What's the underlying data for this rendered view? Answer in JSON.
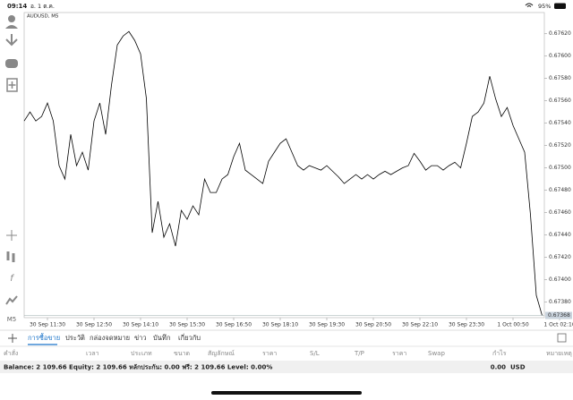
{
  "status_bar": {
    "time": "09:14",
    "date": "อ. 1 ต.ค.",
    "battery": "95%"
  },
  "chart_data": {
    "type": "line",
    "title": "AUDUSD, M5",
    "color": "#000000",
    "categories": [
      null,
      null,
      null,
      null,
      "30 Sep 11:30",
      null,
      null,
      null,
      null,
      null,
      null,
      null,
      "30 Sep 12:50",
      null,
      null,
      null,
      null,
      null,
      null,
      null,
      "30 Sep 14:10",
      null,
      null,
      null,
      null,
      null,
      null,
      null,
      "30 Sep 15:30",
      null,
      null,
      null,
      null,
      null,
      null,
      null,
      "30 Sep 16:50",
      null,
      null,
      null,
      null,
      null,
      null,
      null,
      "30 Sep 18:10",
      null,
      null,
      null,
      null,
      null,
      null,
      null,
      "30 Sep 19:30",
      null,
      null,
      null,
      null,
      null,
      null,
      null,
      "30 Sep 20:50",
      null,
      null,
      null,
      null,
      null,
      null,
      null,
      "30 Sep 22:10",
      null,
      null,
      null,
      null,
      null,
      null,
      null,
      "30 Sep 23:30",
      null,
      null,
      null,
      null,
      null,
      null,
      null,
      "1 Oct 00:50",
      null,
      null,
      null,
      null,
      null,
      null,
      null,
      "1 Oct 02:10"
    ],
    "values": [
      0.67542,
      0.6755,
      0.67542,
      0.67546,
      0.67558,
      0.67542,
      0.67502,
      0.6749,
      0.6753,
      0.67502,
      0.67514,
      0.67498,
      0.67542,
      0.67558,
      0.6753,
      0.67574,
      0.6761,
      0.67618,
      0.67622,
      0.67614,
      0.67602,
      0.67562,
      0.67442,
      0.6747,
      0.67438,
      0.6745,
      0.6743,
      0.67462,
      0.67454,
      0.67466,
      0.67458,
      0.6749,
      0.67478,
      0.67478,
      0.6749,
      0.67494,
      0.6751,
      0.67522,
      0.67498,
      0.67494,
      0.6749,
      0.67486,
      0.67506,
      0.67514,
      0.67522,
      0.67526,
      0.67514,
      0.67502,
      0.67498,
      0.67502,
      0.675,
      0.67498,
      0.67502,
      0.67497,
      0.67492,
      0.67486,
      0.6749,
      0.67494,
      0.6749,
      0.67494,
      0.6749,
      0.67494,
      0.67497,
      0.67494,
      0.67497,
      0.675,
      0.67502,
      0.67513,
      0.67506,
      0.67498,
      0.67502,
      0.67502,
      0.67498,
      0.67502,
      0.67505,
      0.675,
      0.67522,
      0.67546,
      0.6755,
      0.67558,
      0.67582,
      0.67562,
      0.67546,
      0.67554,
      0.67538,
      0.67526,
      0.67514,
      0.67458,
      0.67386,
      0.67368,
      null,
      null,
      null
    ],
    "ylim": [
      0.67366,
      0.67639
    ],
    "yticks": [
      {
        "value": 0.6762,
        "label": "0.67620"
      },
      {
        "value": 0.676,
        "label": "0.67600"
      },
      {
        "value": 0.6758,
        "label": "0.67580"
      },
      {
        "value": 0.6756,
        "label": "0.67560"
      },
      {
        "value": 0.6754,
        "label": "0.67540"
      },
      {
        "value": 0.6752,
        "label": "0.67520"
      },
      {
        "value": 0.675,
        "label": "0.67500"
      },
      {
        "value": 0.6748,
        "label": "0.67480"
      },
      {
        "value": 0.6746,
        "label": "0.67460"
      },
      {
        "value": 0.6744,
        "label": "0.67440"
      },
      {
        "value": 0.6742,
        "label": "0.67420"
      },
      {
        "value": 0.674,
        "label": "0.67400"
      },
      {
        "value": 0.6738,
        "label": "0.67380"
      }
    ],
    "last_price": 0.67368
  },
  "toolbar": {
    "timeframe": "M5"
  },
  "tabs": [
    "การซื้อขาย",
    "ประวัติ",
    "กล่องจดหมาย",
    "ข่าว",
    "บันทึก",
    "เกี่ยวกับ"
  ],
  "columns": [
    "คำสั่ง",
    "เวลา",
    "ประเภท",
    "ขนาด",
    "สัญลักษณ์",
    "ราคา",
    "S/L",
    "T/P",
    "ราคา",
    "Swap",
    "กำไร",
    "หมายเหตุ"
  ],
  "account": {
    "summary": "Balance: 2 109.66 Equity: 2 109.66 หลักประกัน: 0.00 ฟรี: 2 109.66 Level: 0.00%",
    "profit": "0.00",
    "currency": "USD"
  }
}
